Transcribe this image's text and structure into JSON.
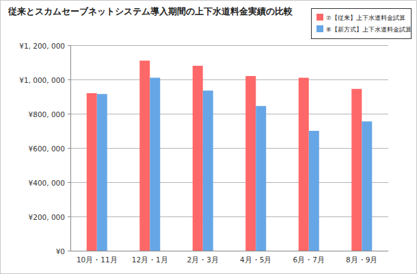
{
  "chart_data": {
    "type": "bar",
    "title": "従来とスカムセーブネットシステム導入期間の上下水道料金実績の比較",
    "categories": [
      "10月・11月",
      "12月・1月",
      "2月・3月",
      "4月・5月",
      "6月・7月",
      "8月・9月"
    ],
    "series": [
      {
        "name": "⑦【従来】上下水道料金試算",
        "color": "#ff6868",
        "values": [
          920000,
          1110000,
          1080000,
          1020000,
          1010000,
          945000
        ]
      },
      {
        "name": "⑧【新方式】上下水道料金試算",
        "color": "#66a6e6",
        "values": [
          915000,
          1010000,
          935000,
          845000,
          700000,
          755000
        ]
      }
    ],
    "ylim": [
      0,
      1200000
    ],
    "yticks": [
      {
        "value": 0,
        "label": "¥0"
      },
      {
        "value": 200000,
        "label": "¥200, 000"
      },
      {
        "value": 400000,
        "label": "¥400, 000"
      },
      {
        "value": 600000,
        "label": "¥600, 000"
      },
      {
        "value": 800000,
        "label": "¥800, 000"
      },
      {
        "value": 1000000,
        "label": "¥1, 000, 000"
      },
      {
        "value": 1200000,
        "label": "¥1, 200, 000"
      }
    ],
    "grid": true,
    "legend": "top-right"
  }
}
